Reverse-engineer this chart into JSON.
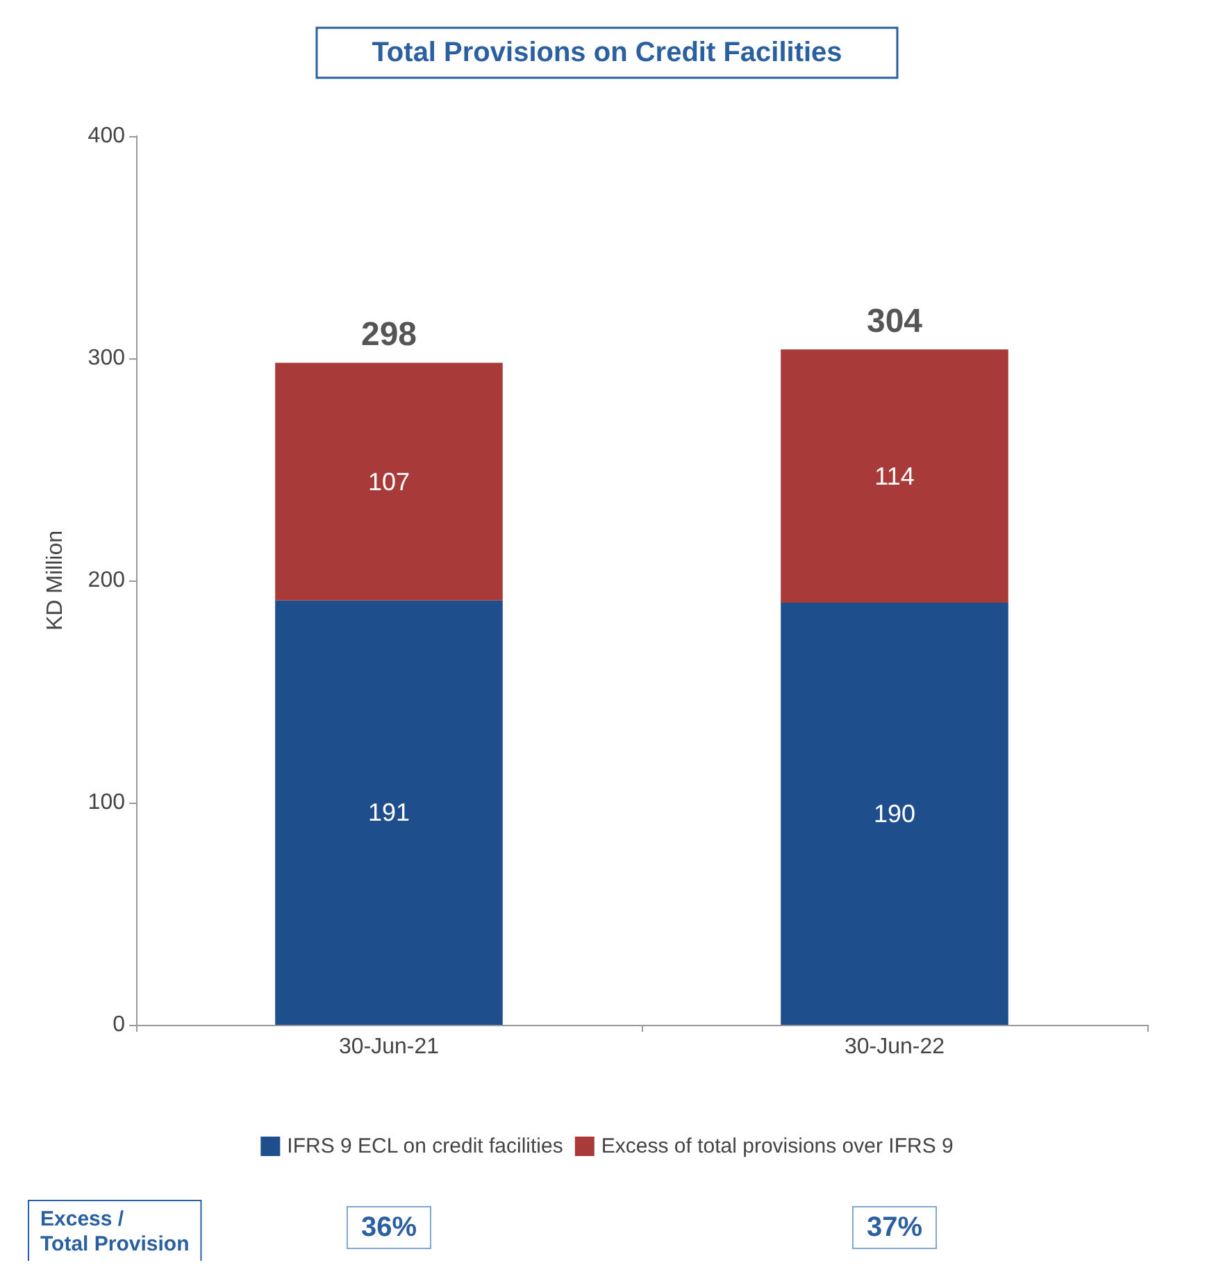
{
  "chart_data": {
    "type": "bar",
    "title": "Total Provisions on Credit Facilities",
    "ylabel": "KD Million",
    "categories": [
      "30-Jun-21",
      "30-Jun-22"
    ],
    "series": [
      {
        "name": "IFRS 9 ECL on credit facilities",
        "color": "#1f4e8c",
        "values": [
          191,
          190
        ]
      },
      {
        "name": "Excess of total provisions over IFRS 9",
        "color": "#a83a3a",
        "values": [
          107,
          114
        ]
      }
    ],
    "stacked": true,
    "data_labels": true,
    "totals": [
      "298",
      "304"
    ],
    "ylim": [
      0,
      400
    ],
    "yticks": [
      0,
      100,
      200,
      300,
      400
    ],
    "grid": false,
    "legend": "bottom",
    "annotations": [
      "Excess / Total Provision",
      "36%",
      "37%"
    ]
  }
}
